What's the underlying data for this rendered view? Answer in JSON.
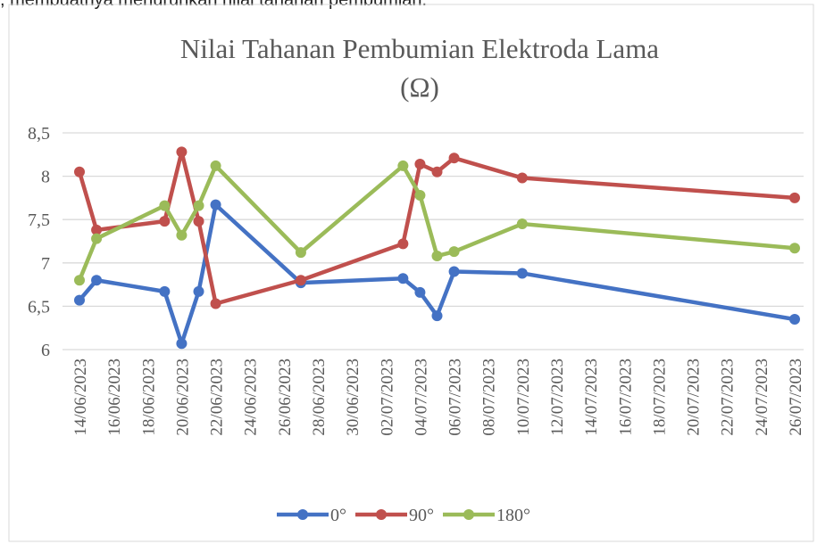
{
  "caption": ", membuatnya menurunkan nilai tahanan pembumian.",
  "chart_data": {
    "type": "line",
    "title": [
      "Nilai Tahanan Pembumian Elektroda Lama",
      "(Ω)"
    ],
    "x": [
      "14/06/2023",
      "15/06/2023",
      "19/06/2023",
      "20/06/2023",
      "21/06/2023",
      "22/06/2023",
      "27/06/2023",
      "03/07/2023",
      "04/07/2023",
      "05/07/2023",
      "06/07/2023",
      "10/07/2023",
      "26/07/2023"
    ],
    "series": [
      {
        "name": "0°",
        "color": "#4472c4",
        "values": [
          6.57,
          6.8,
          6.67,
          6.07,
          6.67,
          7.67,
          6.77,
          6.82,
          6.66,
          6.39,
          6.9,
          6.88,
          6.35
        ]
      },
      {
        "name": "90°",
        "color": "#c0504d",
        "values": [
          8.05,
          7.38,
          7.48,
          8.28,
          7.48,
          6.53,
          6.8,
          7.22,
          8.14,
          8.05,
          8.21,
          7.98,
          7.75
        ]
      },
      {
        "name": "180°",
        "color": "#9bbb59",
        "values": [
          6.8,
          7.28,
          7.66,
          7.32,
          7.66,
          8.12,
          7.12,
          8.12,
          7.78,
          7.08,
          7.13,
          7.45,
          7.17
        ]
      }
    ],
    "xlim": [
      "14/06/2023",
      "26/07/2023"
    ],
    "xticks": [
      "14/06/2023",
      "16/06/2023",
      "18/06/2023",
      "20/06/2023",
      "22/06/2023",
      "24/06/2023",
      "26/06/2023",
      "28/06/2023",
      "30/06/2023",
      "02/07/2023",
      "04/07/2023",
      "06/07/2023",
      "08/07/2023",
      "10/07/2023",
      "12/07/2023",
      "14/07/2023",
      "16/07/2023",
      "18/07/2023",
      "20/07/2023",
      "22/07/2023",
      "24/07/2023",
      "26/07/2023"
    ],
    "ylim": [
      6,
      8.5
    ],
    "yticks": [
      {
        "value": 6,
        "label": "6"
      },
      {
        "value": 6.5,
        "label": "6,5"
      },
      {
        "value": 7,
        "label": "7"
      },
      {
        "value": 7.5,
        "label": "7,5"
      },
      {
        "value": 8,
        "label": "8"
      },
      {
        "value": 8.5,
        "label": "8,5"
      }
    ],
    "grid": true,
    "legend": "bottom"
  }
}
